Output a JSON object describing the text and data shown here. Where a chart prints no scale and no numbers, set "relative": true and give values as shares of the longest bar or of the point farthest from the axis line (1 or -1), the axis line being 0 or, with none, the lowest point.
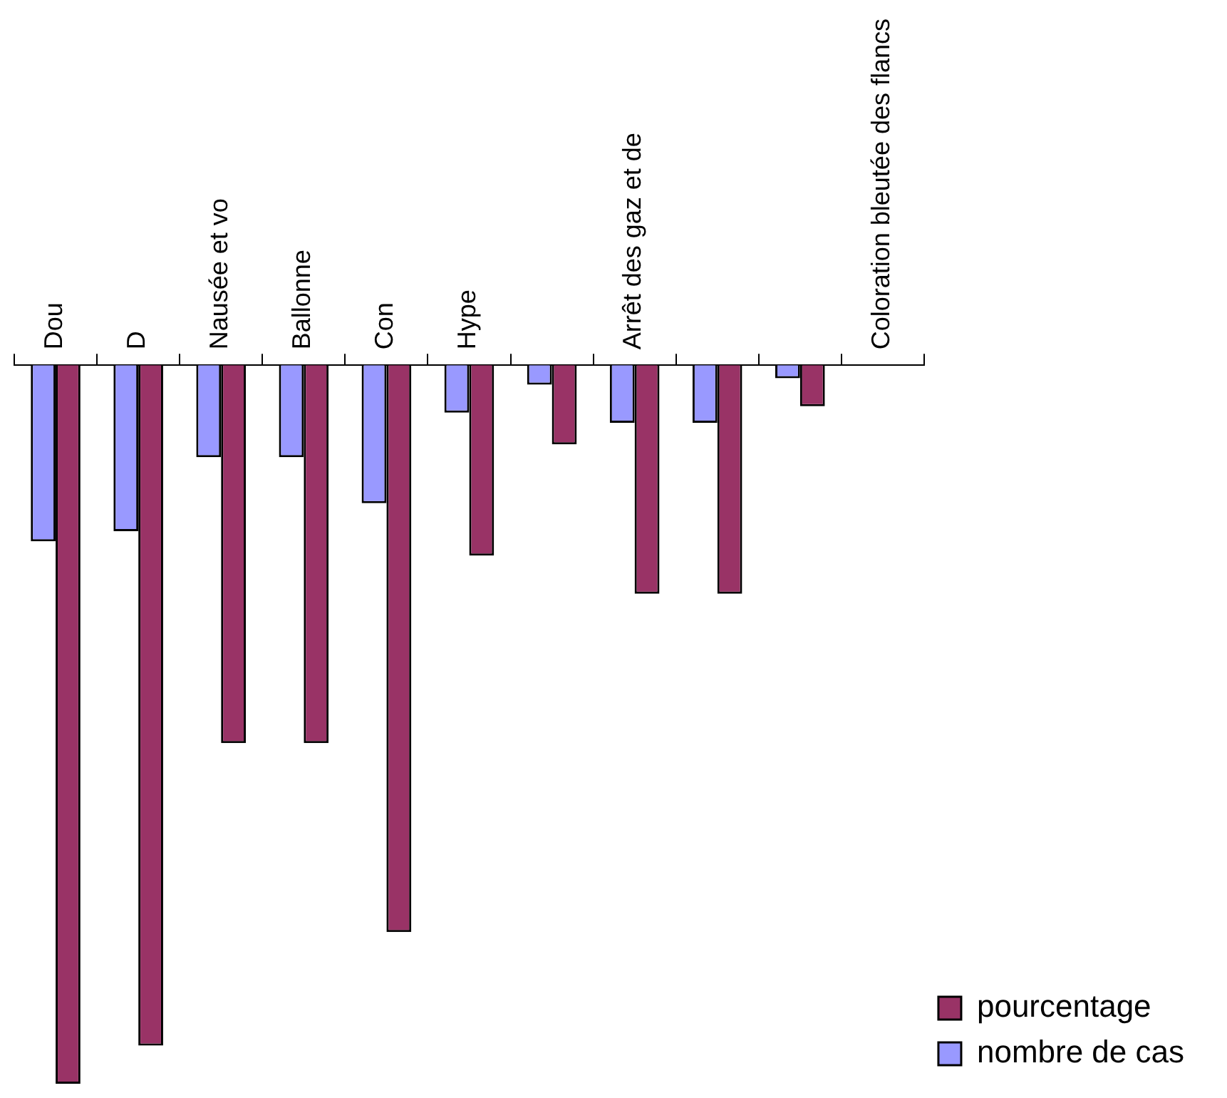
{
  "chart_data": {
    "type": "bar",
    "relative": true,
    "legend": "bottom right",
    "grid": false,
    "categories": [
      "Dou",
      "D",
      "Nausée et vo",
      "Ballonne",
      "Con",
      "Hype",
      null,
      "Arrêt des gaz et de",
      null,
      null,
      "Coloration bleutée des flancs"
    ],
    "series": [
      {
        "name": "nombre de cas",
        "color": "#9999ff",
        "values": [
          -0.245,
          -0.231,
          -0.128,
          -0.128,
          -0.192,
          -0.066,
          -0.027,
          -0.08,
          -0.08,
          -0.018,
          null
        ]
      },
      {
        "name": "pourcentage",
        "color": "#993366",
        "values": [
          -1,
          -0.947,
          -0.526,
          -0.526,
          -0.789,
          -0.265,
          -0.11,
          -0.318,
          -0.318,
          -0.057,
          null
        ]
      }
    ]
  }
}
